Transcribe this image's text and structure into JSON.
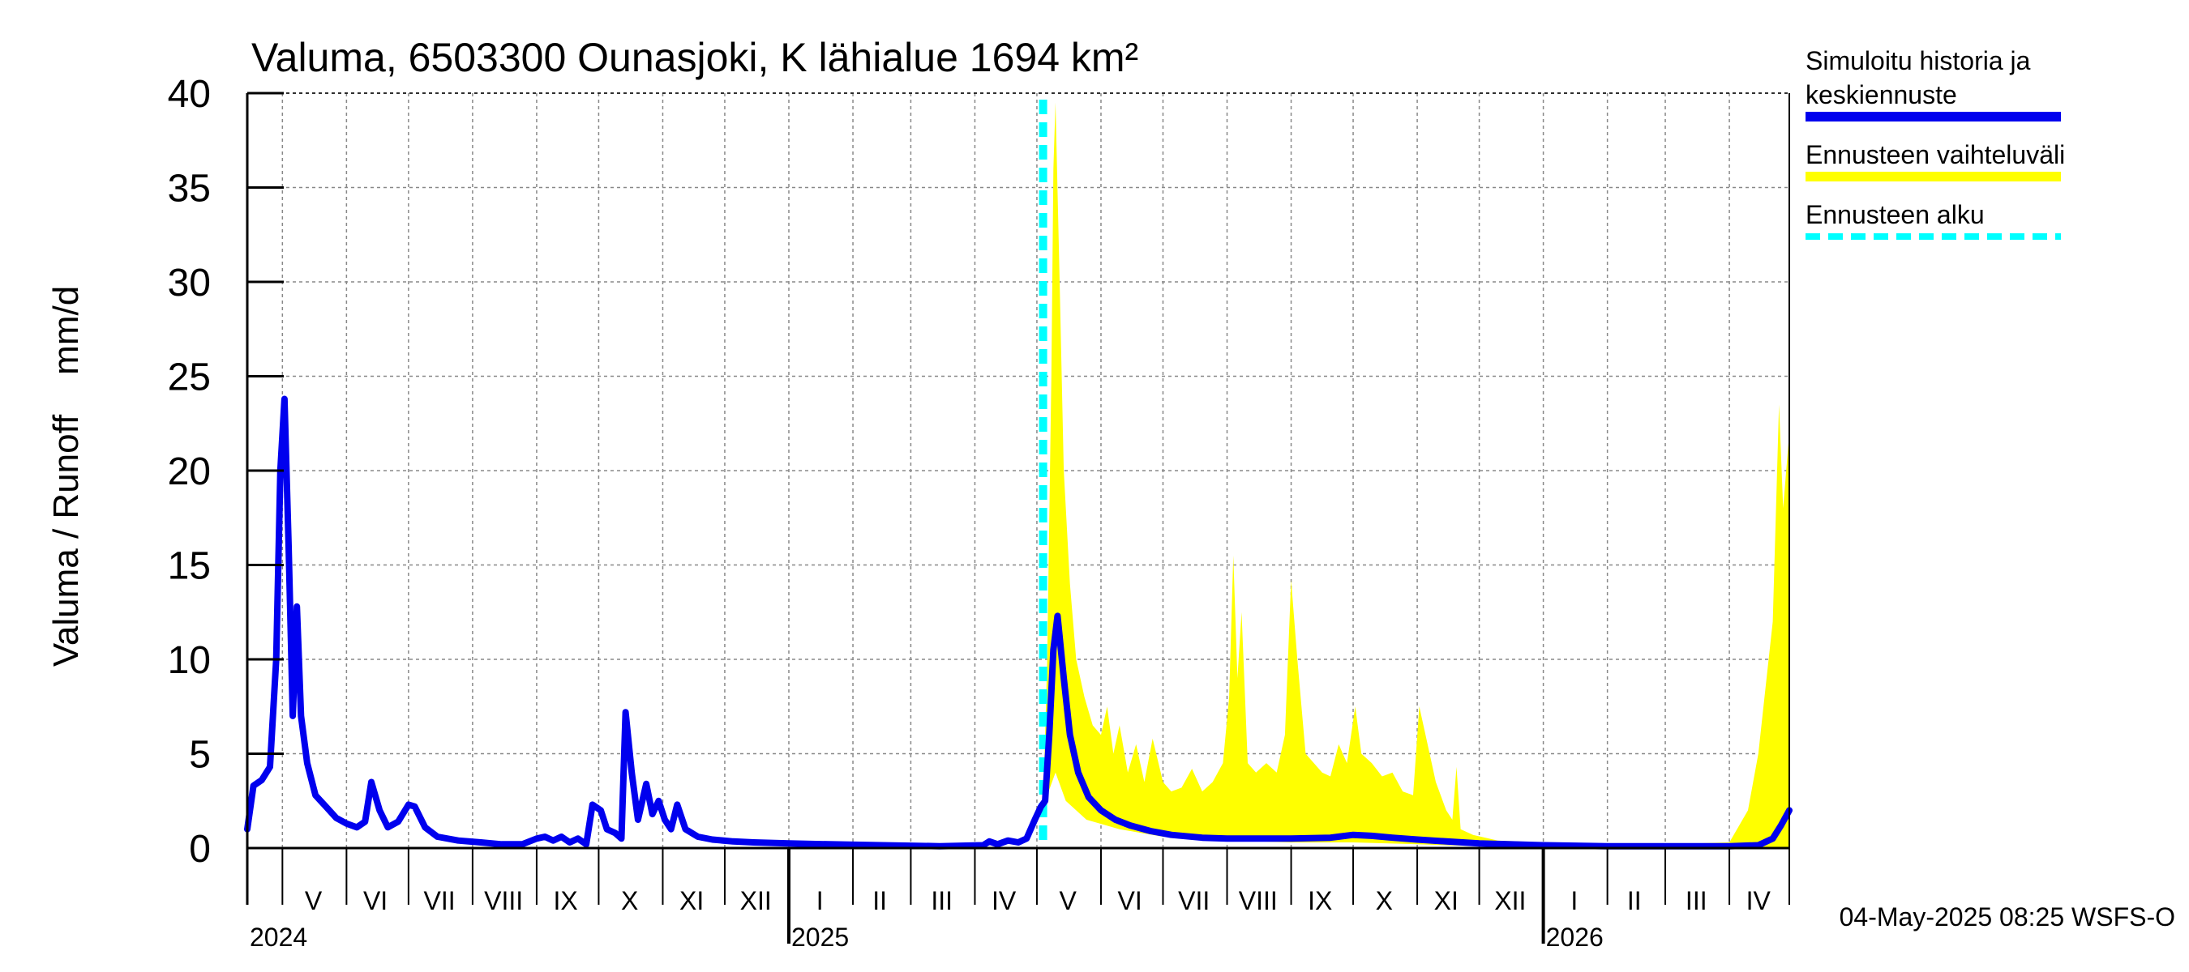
{
  "chart_data": {
    "type": "area",
    "title": "Valuma, 6503300 Ounasjoki, K lähialue 1694 km²",
    "ylabel": "Valuma / Runoff    mm/d",
    "ylim": [
      0,
      40
    ],
    "y_ticks": [
      0,
      5,
      10,
      15,
      20,
      25,
      30,
      35,
      40
    ],
    "grid": true,
    "legend_position": "right",
    "x_start": "2024-04-14",
    "x_end": "2026-04-30",
    "month_ticks": [
      "2024-05-01",
      "2024-06-01",
      "2024-07-01",
      "2024-08-01",
      "2024-09-01",
      "2024-10-01",
      "2024-11-01",
      "2024-12-01",
      "2025-01-01",
      "2025-02-01",
      "2025-03-01",
      "2025-04-01",
      "2025-05-01",
      "2025-06-01",
      "2025-07-01",
      "2025-08-01",
      "2025-09-01",
      "2025-10-01",
      "2025-11-01",
      "2025-12-01",
      "2026-01-01",
      "2026-02-01",
      "2026-03-01",
      "2026-04-01"
    ],
    "month_labels": [
      {
        "label": "V",
        "mid": "2024-05-16"
      },
      {
        "label": "VI",
        "mid": "2024-06-15"
      },
      {
        "label": "VII",
        "mid": "2024-07-16"
      },
      {
        "label": "VIII",
        "mid": "2024-08-16"
      },
      {
        "label": "IX",
        "mid": "2024-09-15"
      },
      {
        "label": "X",
        "mid": "2024-10-16"
      },
      {
        "label": "XI",
        "mid": "2024-11-15"
      },
      {
        "label": "XII",
        "mid": "2024-12-16"
      },
      {
        "label": "I",
        "mid": "2025-01-16"
      },
      {
        "label": "II",
        "mid": "2025-02-14"
      },
      {
        "label": "III",
        "mid": "2025-03-16"
      },
      {
        "label": "IV",
        "mid": "2025-04-15"
      },
      {
        "label": "V",
        "mid": "2025-05-16"
      },
      {
        "label": "VI",
        "mid": "2025-06-15"
      },
      {
        "label": "VII",
        "mid": "2025-07-16"
      },
      {
        "label": "VIII",
        "mid": "2025-08-16"
      },
      {
        "label": "IX",
        "mid": "2025-09-15"
      },
      {
        "label": "X",
        "mid": "2025-10-16"
      },
      {
        "label": "XI",
        "mid": "2025-11-15"
      },
      {
        "label": "XII",
        "mid": "2025-12-16"
      },
      {
        "label": "I",
        "mid": "2026-01-16"
      },
      {
        "label": "II",
        "mid": "2026-02-14"
      },
      {
        "label": "III",
        "mid": "2026-03-16"
      },
      {
        "label": "IV",
        "mid": "2026-04-15"
      }
    ],
    "year_labels": [
      {
        "label": "2024",
        "date": "2024-04-14"
      },
      {
        "label": "2025",
        "date": "2025-01-01"
      },
      {
        "label": "2026",
        "date": "2026-01-01"
      }
    ],
    "year_boundaries": [
      "2025-01-01",
      "2026-01-01"
    ],
    "forecast_start": "2025-05-04",
    "series": [
      {
        "name": "Simuloitu historia ja keskiennuste",
        "color": "#0000ee",
        "points": [
          [
            "2024-04-14",
            1.0
          ],
          [
            "2024-04-17",
            3.3
          ],
          [
            "2024-04-21",
            3.6
          ],
          [
            "2024-04-25",
            4.3
          ],
          [
            "2024-04-28",
            10.0
          ],
          [
            "2024-04-30",
            20.0
          ],
          [
            "2024-05-02",
            23.8
          ],
          [
            "2024-05-04",
            16.0
          ],
          [
            "2024-05-06",
            7.0
          ],
          [
            "2024-05-08",
            12.8
          ],
          [
            "2024-05-10",
            7.0
          ],
          [
            "2024-05-13",
            4.5
          ],
          [
            "2024-05-17",
            2.8
          ],
          [
            "2024-05-22",
            2.2
          ],
          [
            "2024-05-27",
            1.6
          ],
          [
            "2024-06-01",
            1.3
          ],
          [
            "2024-06-06",
            1.1
          ],
          [
            "2024-06-10",
            1.4
          ],
          [
            "2024-06-13",
            3.5
          ],
          [
            "2024-06-17",
            2.0
          ],
          [
            "2024-06-21",
            1.1
          ],
          [
            "2024-06-26",
            1.4
          ],
          [
            "2024-07-01",
            2.3
          ],
          [
            "2024-07-04",
            2.2
          ],
          [
            "2024-07-09",
            1.1
          ],
          [
            "2024-07-15",
            0.6
          ],
          [
            "2024-07-25",
            0.4
          ],
          [
            "2024-08-05",
            0.3
          ],
          [
            "2024-08-15",
            0.2
          ],
          [
            "2024-08-25",
            0.2
          ],
          [
            "2024-09-01",
            0.5
          ],
          [
            "2024-09-05",
            0.6
          ],
          [
            "2024-09-09",
            0.4
          ],
          [
            "2024-09-13",
            0.6
          ],
          [
            "2024-09-17",
            0.3
          ],
          [
            "2024-09-21",
            0.5
          ],
          [
            "2024-09-25",
            0.2
          ],
          [
            "2024-09-28",
            2.3
          ],
          [
            "2024-10-02",
            2.0
          ],
          [
            "2024-10-05",
            1.0
          ],
          [
            "2024-10-09",
            0.8
          ],
          [
            "2024-10-12",
            0.5
          ],
          [
            "2024-10-14",
            7.2
          ],
          [
            "2024-10-17",
            4.0
          ],
          [
            "2024-10-20",
            1.5
          ],
          [
            "2024-10-24",
            3.4
          ],
          [
            "2024-10-27",
            1.8
          ],
          [
            "2024-10-30",
            2.5
          ],
          [
            "2024-11-02",
            1.5
          ],
          [
            "2024-11-05",
            1.0
          ],
          [
            "2024-11-08",
            2.3
          ],
          [
            "2024-11-12",
            1.0
          ],
          [
            "2024-11-18",
            0.6
          ],
          [
            "2024-11-25",
            0.45
          ],
          [
            "2024-12-05",
            0.35
          ],
          [
            "2024-12-15",
            0.3
          ],
          [
            "2025-01-01",
            0.25
          ],
          [
            "2025-01-20",
            0.2
          ],
          [
            "2025-02-15",
            0.15
          ],
          [
            "2025-03-15",
            0.1
          ],
          [
            "2025-04-05",
            0.15
          ],
          [
            "2025-04-08",
            0.35
          ],
          [
            "2025-04-12",
            0.2
          ],
          [
            "2025-04-17",
            0.4
          ],
          [
            "2025-04-22",
            0.3
          ],
          [
            "2025-04-26",
            0.5
          ],
          [
            "2025-04-30",
            1.5
          ],
          [
            "2025-05-03",
            2.2
          ],
          [
            "2025-05-05",
            2.5
          ],
          [
            "2025-05-07",
            6.0
          ],
          [
            "2025-05-09",
            10.5
          ],
          [
            "2025-05-11",
            12.3
          ],
          [
            "2025-05-14",
            9.0
          ],
          [
            "2025-05-17",
            6.0
          ],
          [
            "2025-05-21",
            4.0
          ],
          [
            "2025-05-26",
            2.7
          ],
          [
            "2025-06-01",
            2.0
          ],
          [
            "2025-06-08",
            1.5
          ],
          [
            "2025-06-15",
            1.2
          ],
          [
            "2025-06-25",
            0.9
          ],
          [
            "2025-07-05",
            0.7
          ],
          [
            "2025-07-20",
            0.55
          ],
          [
            "2025-08-01",
            0.5
          ],
          [
            "2025-08-15",
            0.5
          ],
          [
            "2025-09-01",
            0.5
          ],
          [
            "2025-09-20",
            0.55
          ],
          [
            "2025-10-01",
            0.7
          ],
          [
            "2025-10-10",
            0.65
          ],
          [
            "2025-10-20",
            0.55
          ],
          [
            "2025-11-01",
            0.45
          ],
          [
            "2025-11-15",
            0.35
          ],
          [
            "2025-12-01",
            0.25
          ],
          [
            "2025-12-15",
            0.2
          ],
          [
            "2026-01-01",
            0.15
          ],
          [
            "2026-02-01",
            0.1
          ],
          [
            "2026-03-01",
            0.1
          ],
          [
            "2026-04-01",
            0.1
          ],
          [
            "2026-04-15",
            0.15
          ],
          [
            "2026-04-22",
            0.5
          ],
          [
            "2026-04-26",
            1.2
          ],
          [
            "2026-04-30",
            2.0
          ]
        ]
      },
      {
        "name": "Ennusteen vaihteluväli",
        "color": "#ffff00",
        "upper": [
          [
            "2025-05-04",
            2.2
          ],
          [
            "2025-05-06",
            10.0
          ],
          [
            "2025-05-08",
            25.0
          ],
          [
            "2025-05-09",
            36.0
          ],
          [
            "2025-05-10",
            39.5
          ],
          [
            "2025-05-12",
            30.0
          ],
          [
            "2025-05-14",
            20.0
          ],
          [
            "2025-05-17",
            14.0
          ],
          [
            "2025-05-20",
            10.0
          ],
          [
            "2025-05-24",
            8.0
          ],
          [
            "2025-05-28",
            6.5
          ],
          [
            "2025-06-01",
            6.0
          ],
          [
            "2025-06-04",
            7.5
          ],
          [
            "2025-06-07",
            5.0
          ],
          [
            "2025-06-10",
            6.5
          ],
          [
            "2025-06-14",
            4.0
          ],
          [
            "2025-06-18",
            5.5
          ],
          [
            "2025-06-22",
            3.5
          ],
          [
            "2025-06-26",
            5.8
          ],
          [
            "2025-07-01",
            3.5
          ],
          [
            "2025-07-05",
            3.0
          ],
          [
            "2025-07-10",
            3.2
          ],
          [
            "2025-07-15",
            4.2
          ],
          [
            "2025-07-20",
            3.0
          ],
          [
            "2025-07-25",
            3.5
          ],
          [
            "2025-07-30",
            4.5
          ],
          [
            "2025-08-02",
            8.0
          ],
          [
            "2025-08-04",
            15.5
          ],
          [
            "2025-08-06",
            9.0
          ],
          [
            "2025-08-08",
            12.5
          ],
          [
            "2025-08-11",
            4.5
          ],
          [
            "2025-08-15",
            4.0
          ],
          [
            "2025-08-20",
            4.5
          ],
          [
            "2025-08-25",
            4.0
          ],
          [
            "2025-08-29",
            6.0
          ],
          [
            "2025-09-01",
            14.2
          ],
          [
            "2025-09-04",
            10.0
          ],
          [
            "2025-09-08",
            5.0
          ],
          [
            "2025-09-12",
            4.5
          ],
          [
            "2025-09-16",
            4.0
          ],
          [
            "2025-09-20",
            3.8
          ],
          [
            "2025-09-24",
            5.5
          ],
          [
            "2025-09-28",
            4.5
          ],
          [
            "2025-10-02",
            7.5
          ],
          [
            "2025-10-05",
            5.0
          ],
          [
            "2025-10-10",
            4.5
          ],
          [
            "2025-10-15",
            3.8
          ],
          [
            "2025-10-20",
            4.0
          ],
          [
            "2025-10-25",
            3.0
          ],
          [
            "2025-10-30",
            2.8
          ],
          [
            "2025-11-02",
            7.5
          ],
          [
            "2025-11-05",
            6.0
          ],
          [
            "2025-11-10",
            3.5
          ],
          [
            "2025-11-15",
            2.0
          ],
          [
            "2025-11-18",
            1.5
          ],
          [
            "2025-11-20",
            4.3
          ],
          [
            "2025-11-22",
            1.0
          ],
          [
            "2025-11-28",
            0.7
          ],
          [
            "2025-12-10",
            0.4
          ],
          [
            "2026-01-01",
            0.3
          ],
          [
            "2026-02-01",
            0.25
          ],
          [
            "2026-03-01",
            0.2
          ],
          [
            "2026-04-01",
            0.3
          ],
          [
            "2026-04-10",
            2.0
          ],
          [
            "2026-04-15",
            5.0
          ],
          [
            "2026-04-18",
            8.0
          ],
          [
            "2026-04-22",
            12.0
          ],
          [
            "2026-04-25",
            23.5
          ],
          [
            "2026-04-27",
            18.0
          ],
          [
            "2026-04-30",
            22.0
          ]
        ],
        "lower": [
          [
            "2025-05-04",
            2.2
          ],
          [
            "2025-05-10",
            4.0
          ],
          [
            "2025-05-15",
            2.5
          ],
          [
            "2025-05-25",
            1.5
          ],
          [
            "2025-06-10",
            1.0
          ],
          [
            "2025-07-01",
            0.6
          ],
          [
            "2025-08-01",
            0.4
          ],
          [
            "2025-09-01",
            0.3
          ],
          [
            "2025-10-01",
            0.3
          ],
          [
            "2025-11-01",
            0.2
          ],
          [
            "2025-12-01",
            0.1
          ],
          [
            "2026-01-01",
            0.05
          ],
          [
            "2026-04-30",
            0.05
          ]
        ]
      },
      {
        "name": "Ennusteen alku",
        "color": "#00ffff"
      }
    ],
    "footer": "04-May-2025 08:25 WSFS-O"
  }
}
